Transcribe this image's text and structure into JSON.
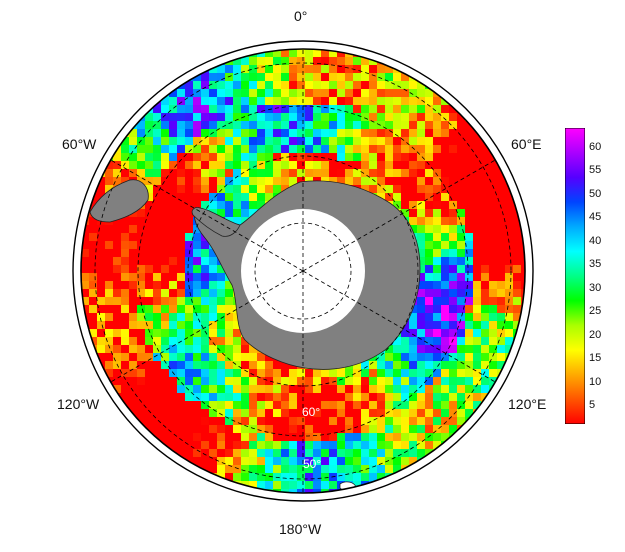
{
  "map": {
    "projection": "south-polar-stereographic",
    "longitude_labels": {
      "top": "0°",
      "upper_left": "60°W",
      "upper_right": "60°E",
      "lower_left": "120°W",
      "lower_right": "120°E",
      "bottom": "180°W"
    },
    "latitude_labels": [
      "60°",
      "50°"
    ],
    "land_color": "#808080",
    "pole_hole_color": "#ffffff",
    "colorbar": {
      "ticks": [
        "5",
        "10",
        "15",
        "20",
        "25",
        "30",
        "35",
        "40",
        "45",
        "50",
        "55",
        "60"
      ],
      "min": 1,
      "max": 64,
      "colors": [
        "#ff0000",
        "#ff5500",
        "#ffaa00",
        "#ffff00",
        "#aaff00",
        "#00ff00",
        "#00ff88",
        "#00ffff",
        "#00aaff",
        "#0044ff",
        "#5500ff",
        "#aa00ff",
        "#ff00ff"
      ]
    }
  }
}
